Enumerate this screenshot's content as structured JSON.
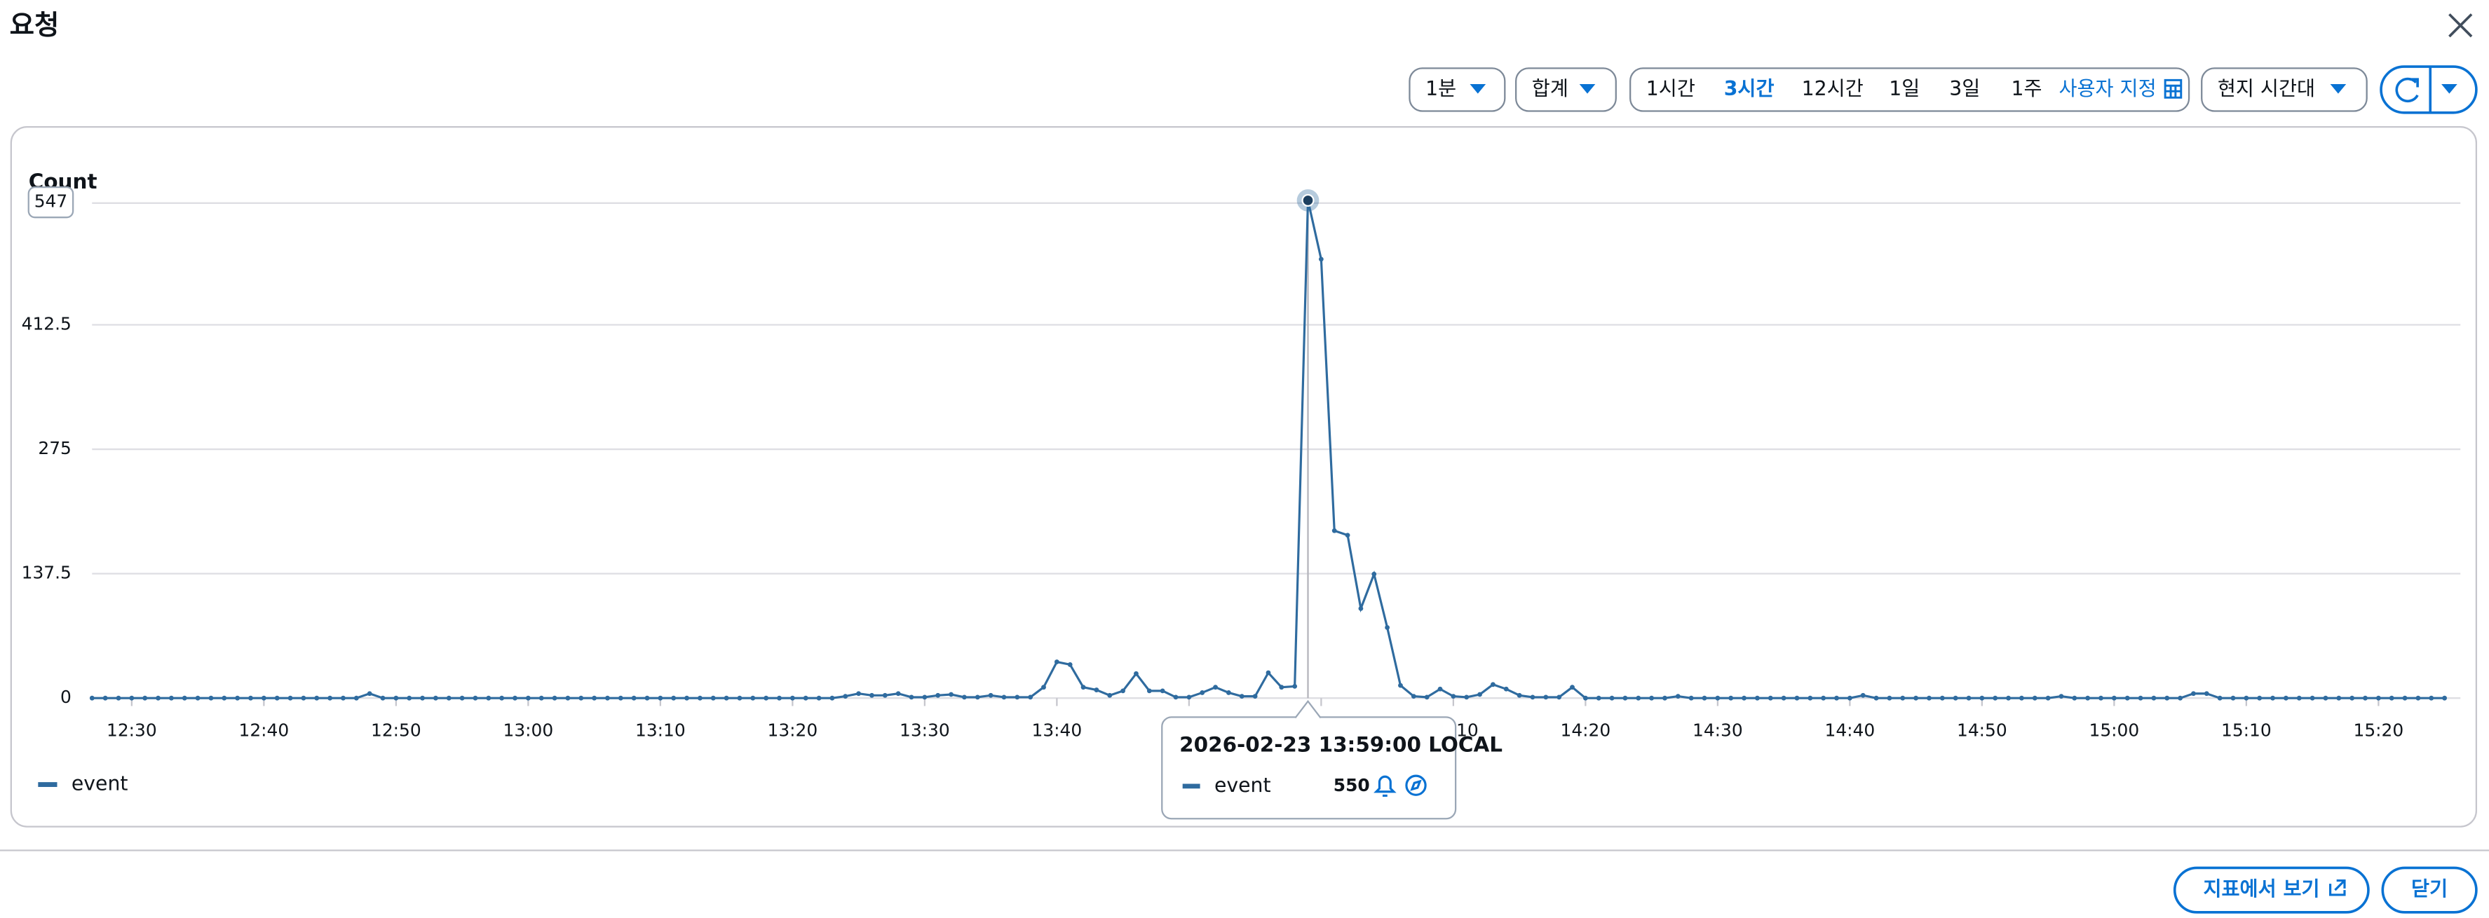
{
  "header": {
    "title": "요청"
  },
  "toolbar": {
    "period": "1분",
    "statistic": "합계",
    "ranges": [
      "1시간",
      "3시간",
      "12시간",
      "1일",
      "3일",
      "1주"
    ],
    "custom": "사용자 지정",
    "timezone": "현지 시간대"
  },
  "chart_data": {
    "type": "line",
    "y_label": "Count",
    "x": [
      "12:27",
      "12:28",
      "12:29",
      "12:30",
      "12:31",
      "12:32",
      "12:33",
      "12:34",
      "12:35",
      "12:36",
      "12:37",
      "12:38",
      "12:39",
      "12:40",
      "12:41",
      "12:42",
      "12:43",
      "12:44",
      "12:45",
      "12:46",
      "12:47",
      "12:48",
      "12:49",
      "12:50",
      "12:51",
      "12:52",
      "12:53",
      "12:54",
      "12:55",
      "12:56",
      "12:57",
      "12:58",
      "12:59",
      "13:00",
      "13:01",
      "13:02",
      "13:03",
      "13:04",
      "13:05",
      "13:06",
      "13:07",
      "13:08",
      "13:09",
      "13:10",
      "13:11",
      "13:12",
      "13:13",
      "13:14",
      "13:15",
      "13:16",
      "13:17",
      "13:18",
      "13:19",
      "13:20",
      "13:21",
      "13:22",
      "13:23",
      "13:24",
      "13:25",
      "13:26",
      "13:27",
      "13:28",
      "13:29",
      "13:30",
      "13:31",
      "13:32",
      "13:33",
      "13:34",
      "13:35",
      "13:36",
      "13:37",
      "13:38",
      "13:39",
      "13:40",
      "13:41",
      "13:42",
      "13:43",
      "13:44",
      "13:45",
      "13:46",
      "13:47",
      "13:48",
      "13:49",
      "13:50",
      "13:51",
      "13:52",
      "13:53",
      "13:54",
      "13:55",
      "13:56",
      "13:57",
      "13:58",
      "13:59",
      "14:00",
      "14:01",
      "14:02",
      "14:03",
      "14:04",
      "14:05",
      "14:06",
      "14:07",
      "14:08",
      "14:09",
      "14:10",
      "14:11",
      "14:12",
      "14:13",
      "14:14",
      "14:15",
      "14:16",
      "14:17",
      "14:18",
      "14:19",
      "14:20",
      "14:21",
      "14:22",
      "14:23",
      "14:24",
      "14:25",
      "14:26",
      "14:27",
      "14:28",
      "14:29",
      "14:30",
      "14:31",
      "14:32",
      "14:33",
      "14:34",
      "14:35",
      "14:36",
      "14:37",
      "14:38",
      "14:39",
      "14:40",
      "14:41",
      "14:42",
      "14:43",
      "14:44",
      "14:45",
      "14:46",
      "14:47",
      "14:48",
      "14:49",
      "14:50",
      "14:51",
      "14:52",
      "14:53",
      "14:54",
      "14:55",
      "14:56",
      "14:57",
      "14:58",
      "14:59",
      "15:00",
      "15:01",
      "15:02",
      "15:03",
      "15:04",
      "15:05",
      "15:06",
      "15:07",
      "15:08",
      "15:09",
      "15:10",
      "15:11",
      "15:12",
      "15:13",
      "15:14",
      "15:15",
      "15:16",
      "15:17",
      "15:18",
      "15:19",
      "15:20",
      "15:21",
      "15:22",
      "15:23",
      "15:24",
      "15:25"
    ],
    "xticks": [
      "12:30",
      "12:40",
      "12:50",
      "13:00",
      "13:10",
      "13:20",
      "13:30",
      "13:40",
      "13:50",
      "14:00",
      "14:10",
      "14:20",
      "14:30",
      "14:40",
      "14:50",
      "15:00",
      "15:10",
      "15:20"
    ],
    "ylim": [
      0,
      547
    ],
    "yticks": [
      0,
      137.5,
      275,
      412.5,
      547
    ],
    "grid": true,
    "series": [
      {
        "name": "event",
        "color": "#2f6b9f",
        "values": [
          0,
          0,
          0,
          0,
          0,
          0,
          0,
          0,
          0,
          0,
          0,
          0,
          0,
          0,
          0,
          0,
          0,
          0,
          0,
          0,
          0,
          5,
          0,
          0,
          0,
          0,
          0,
          0,
          0,
          0,
          0,
          0,
          0,
          0,
          0,
          0,
          0,
          0,
          0,
          0,
          0,
          0,
          0,
          0,
          0,
          0,
          0,
          0,
          0,
          0,
          0,
          0,
          0,
          0,
          0,
          0,
          0,
          2,
          5,
          3,
          3,
          5,
          1,
          1,
          3,
          4,
          1,
          1,
          3,
          1,
          1,
          1,
          12,
          40,
          37,
          12,
          9,
          3,
          8,
          27,
          8,
          8,
          1,
          1,
          6,
          12,
          6,
          2,
          2,
          28,
          12,
          13,
          550,
          485,
          185,
          180,
          99,
          137,
          78,
          14,
          2,
          1,
          10,
          2,
          1,
          4,
          15,
          10,
          3,
          1,
          1,
          1,
          12,
          0,
          0,
          0,
          0,
          0,
          0,
          0,
          2,
          0,
          0,
          0,
          0,
          0,
          0,
          0,
          0,
          0,
          0,
          0,
          0,
          0,
          3,
          0,
          0,
          0,
          0,
          0,
          0,
          0,
          0,
          0,
          0,
          0,
          0,
          0,
          0,
          2,
          0,
          0,
          0,
          0,
          0,
          0,
          0,
          0,
          0,
          5,
          5,
          0,
          0,
          0,
          0,
          0,
          0,
          0,
          0,
          0,
          0,
          0,
          0,
          0,
          0,
          0,
          0,
          0,
          0
        ]
      }
    ],
    "tooltip": {
      "title": "2026-02-23 13:59:00 LOCAL"
    }
  },
  "footer": {
    "buttons": [
      "지표에서 보기",
      "닫기"
    ]
  }
}
